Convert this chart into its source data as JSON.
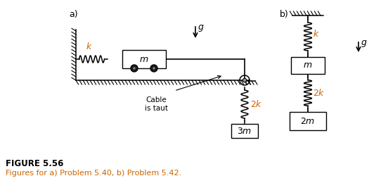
{
  "fig_width": 5.52,
  "fig_height": 2.77,
  "dpi": 100,
  "background_color": "#ffffff",
  "label_a": "a)",
  "label_b": "b)",
  "figure_title": "FIGURE 5.56",
  "figure_caption": "Figures for a) Problem 5.40, b) Problem 5.42.",
  "title_fontsize": 8.5,
  "caption_fontsize": 8,
  "orange_color": "#cc6600",
  "black": "#000000",
  "gray": "#888888",
  "darkgray": "#444444"
}
